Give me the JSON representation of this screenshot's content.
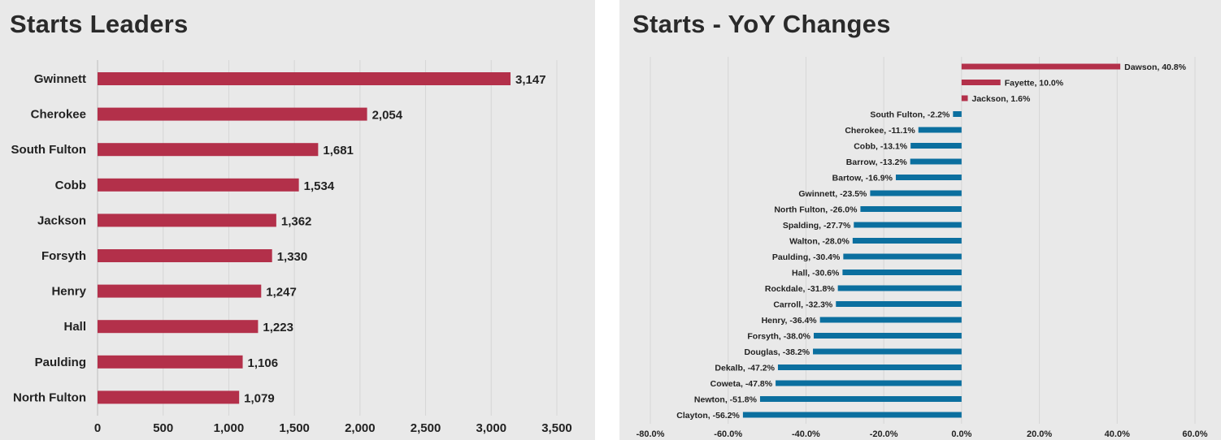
{
  "chart_data": [
    {
      "type": "bar",
      "orientation": "horizontal",
      "title": "Starts Leaders",
      "categories": [
        "Gwinnett",
        "Cherokee",
        "South Fulton",
        "Cobb",
        "Jackson",
        "Forsyth",
        "Henry",
        "Hall",
        "Paulding",
        "North Fulton"
      ],
      "values": [
        3147,
        2054,
        1681,
        1534,
        1362,
        1330,
        1247,
        1223,
        1106,
        1079
      ],
      "value_labels": [
        "3,147",
        "2,054",
        "1,681",
        "1,534",
        "1,362",
        "1,330",
        "1,247",
        "1,223",
        "1,106",
        "1,079"
      ],
      "xlim": [
        0,
        3500
      ],
      "xticks": [
        0,
        500,
        1000,
        1500,
        2000,
        2500,
        3000,
        3500
      ],
      "xtick_labels": [
        "0",
        "500",
        "1,000",
        "1,500",
        "2,000",
        "2,500",
        "3,000",
        "3,500"
      ],
      "grid": true,
      "color": "#b3304a"
    },
    {
      "type": "bar",
      "orientation": "horizontal",
      "title": "Starts - YoY Changes",
      "categories": [
        "Dawson",
        "Fayette",
        "Jackson",
        "South Fulton",
        "Cherokee",
        "Cobb",
        "Barrow",
        "Bartow",
        "Gwinnett",
        "North Fulton",
        "Spalding",
        "Walton",
        "Paulding",
        "Hall",
        "Rockdale",
        "Carroll",
        "Henry",
        "Forsyth",
        "Douglas",
        "Dekalb",
        "Coweta",
        "Newton",
        "Clayton"
      ],
      "values": [
        40.8,
        10.0,
        1.6,
        -2.2,
        -11.1,
        -13.1,
        -13.2,
        -16.9,
        -23.5,
        -26.0,
        -27.7,
        -28.0,
        -30.4,
        -30.6,
        -31.8,
        -32.3,
        -36.4,
        -38.0,
        -38.2,
        -47.2,
        -47.8,
        -51.8,
        -56.2
      ],
      "data_labels": [
        "Dawson, 40.8%",
        "Fayette, 10.0%",
        "Jackson, 1.6%",
        "South Fulton, -2.2%",
        "Cherokee, -11.1%",
        "Cobb, -13.1%",
        "Barrow, -13.2%",
        "Bartow, -16.9%",
        "Gwinnett, -23.5%",
        "North Fulton, -26.0%",
        "Spalding, -27.7%",
        "Walton, -28.0%",
        "Paulding, -30.4%",
        "Hall, -30.6%",
        "Rockdale, -31.8%",
        "Carroll, -32.3%",
        "Henry, -36.4%",
        "Forsyth, -38.0%",
        "Douglas, -38.2%",
        "Dekalb, -47.2%",
        "Coweta, -47.8%",
        "Newton, -51.8%",
        "Clayton, -56.2%"
      ],
      "xlim": [
        -80,
        60
      ],
      "xticks": [
        -80,
        -60,
        -40,
        -20,
        0,
        20,
        40,
        60
      ],
      "xtick_labels": [
        "-80.0%",
        "-60.0%",
        "-40.0%",
        "-20.0%",
        "0.0%",
        "20.0%",
        "40.0%",
        "60.0%"
      ],
      "grid": true,
      "positive_color": "#b3304a",
      "negative_color": "#0b6f9f"
    }
  ]
}
